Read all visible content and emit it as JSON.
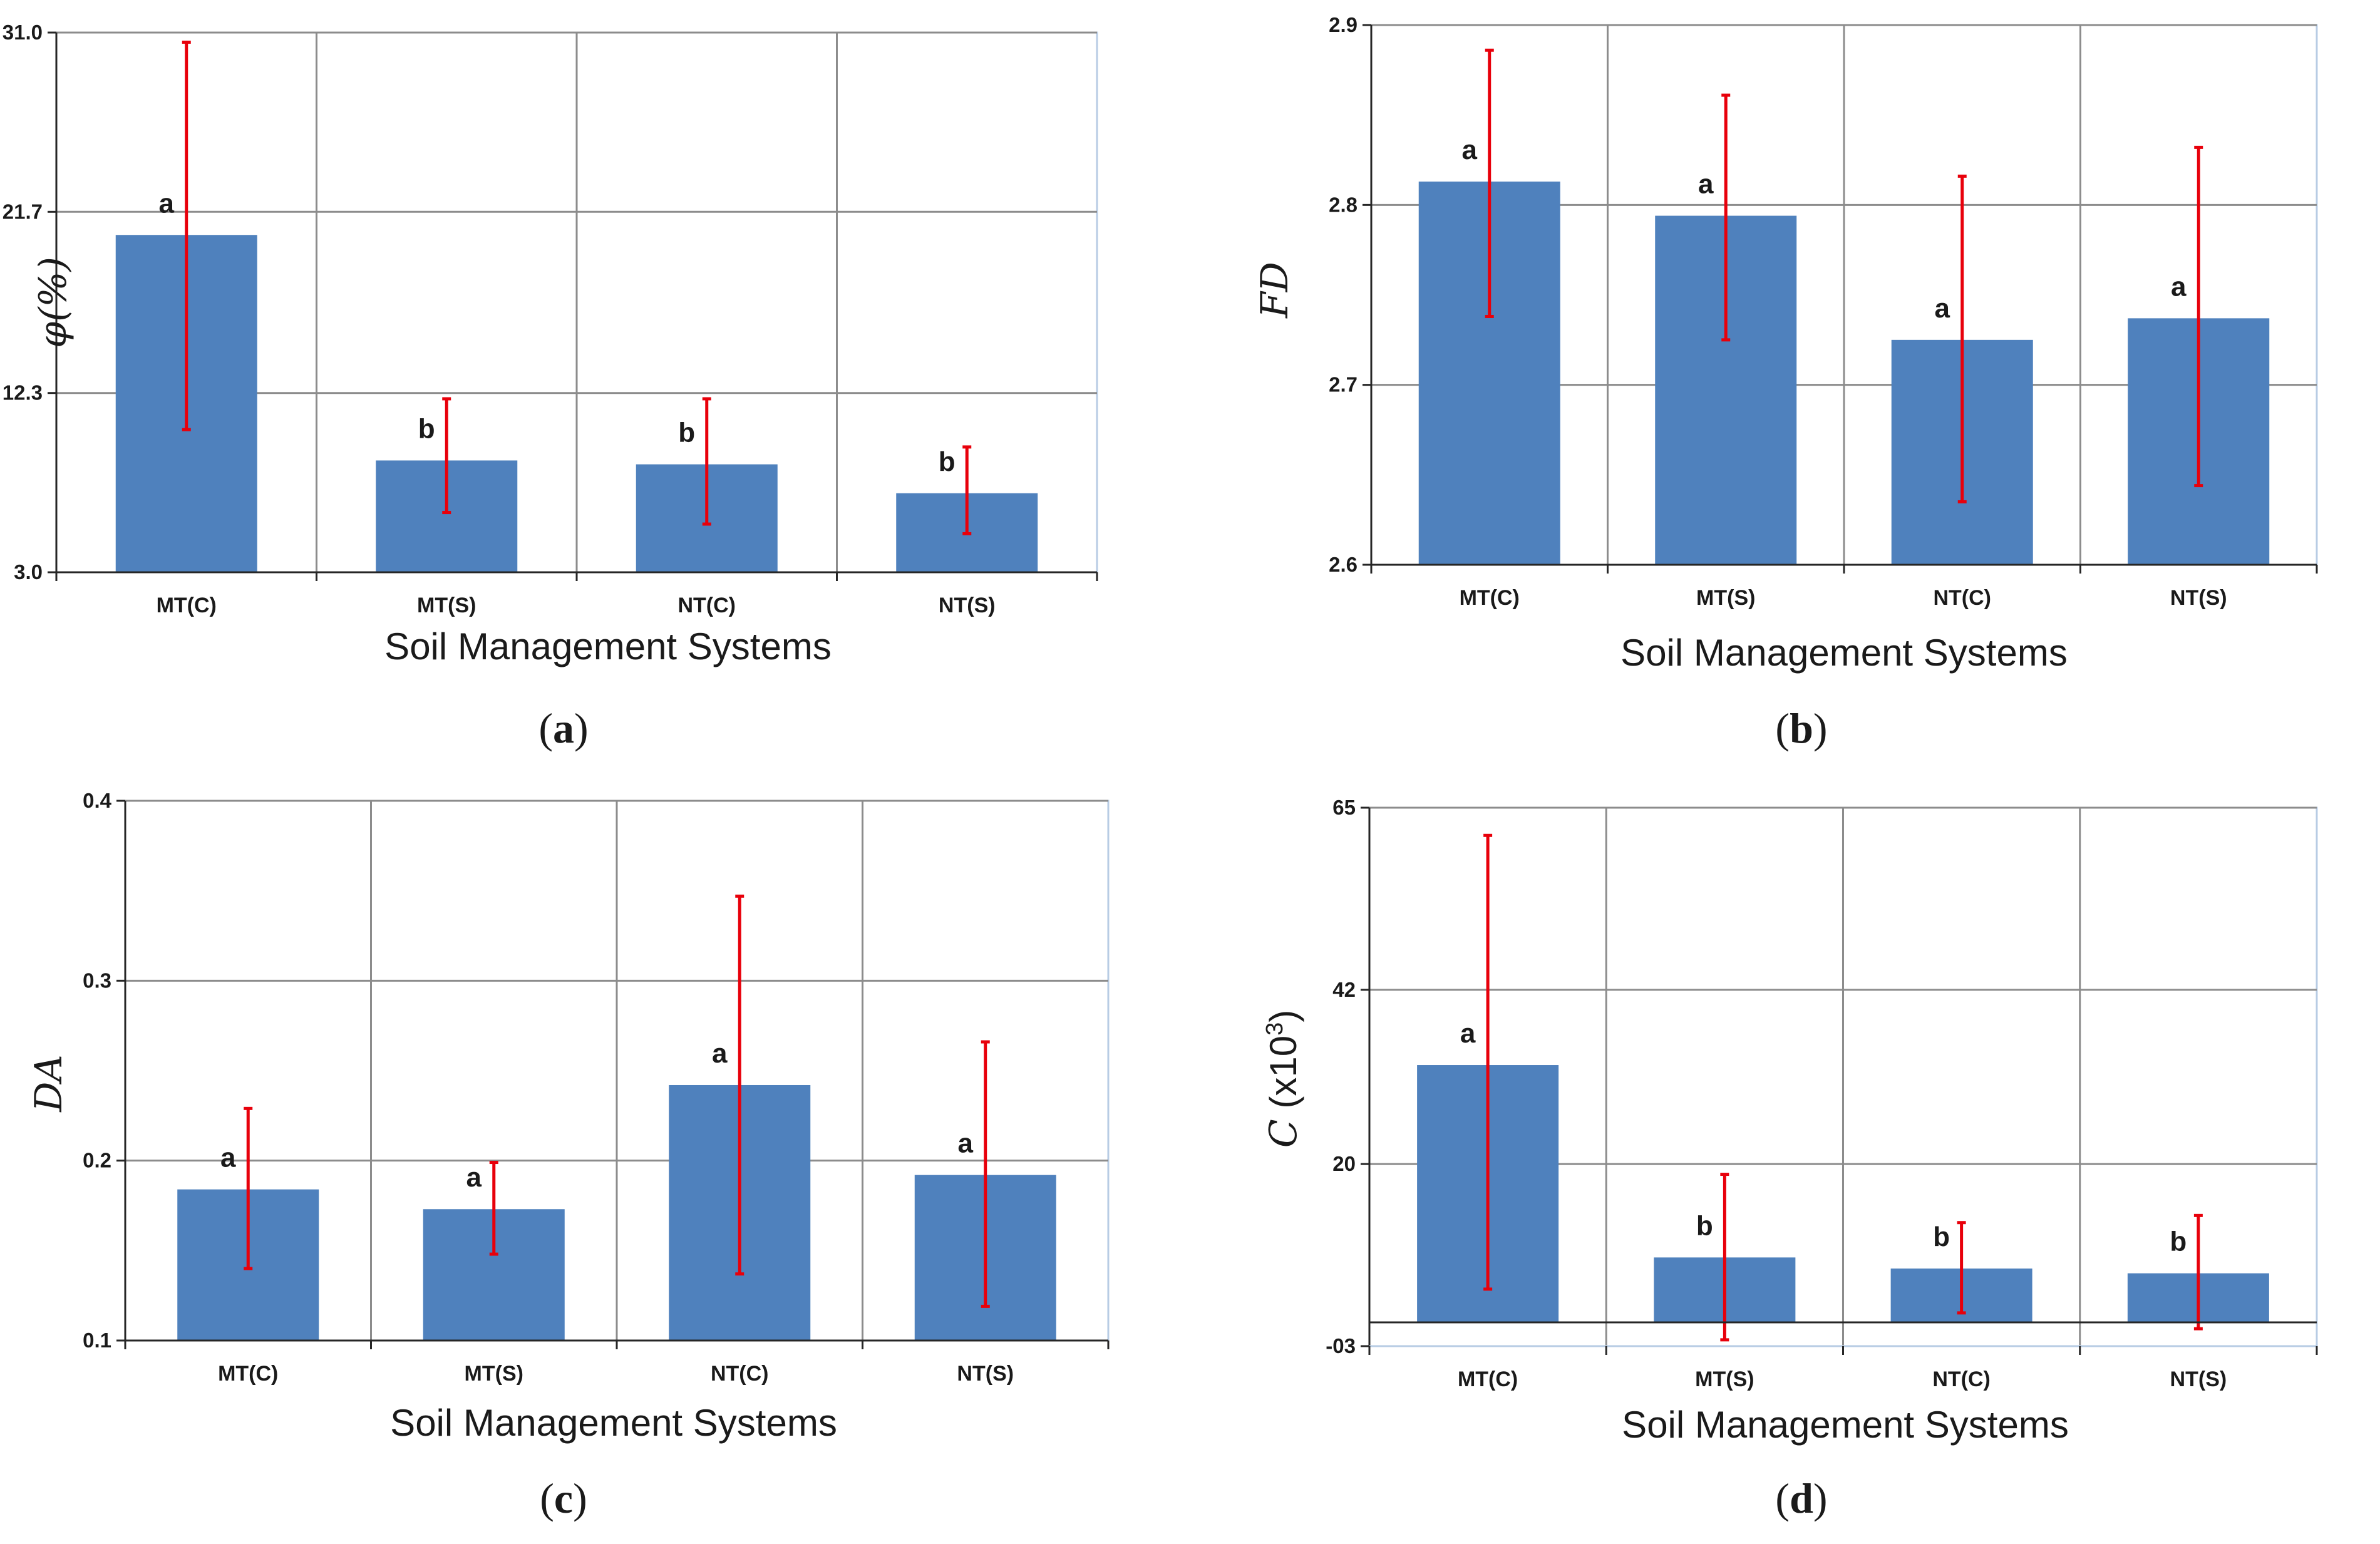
{
  "colors": {
    "bar": "#4f81bd",
    "error": "#e8000b",
    "grid": "#8c8c8c",
    "border": "#b8cce4",
    "axis": "#262626"
  },
  "chart_data": [
    {
      "id": "a",
      "type": "bar",
      "caption": "a",
      "title": "",
      "xlabel": "Soil Management Systems",
      "ylabel": "φ(%)",
      "ylim": [
        3.0,
        31.0
      ],
      "yticks": [
        "3.0",
        "12.3",
        "21.7",
        "31.0"
      ],
      "categories": [
        "MT(C)",
        "MT(S)",
        "NT(C)",
        "NT(S)"
      ],
      "values": [
        20.5,
        8.8,
        8.6,
        7.1
      ],
      "error_high": [
        30.5,
        12.0,
        12.0,
        9.5
      ],
      "error_low": [
        10.4,
        6.1,
        5.5,
        5.0
      ],
      "letters": [
        "a",
        "b",
        "b",
        "b"
      ]
    },
    {
      "id": "b",
      "type": "bar",
      "caption": "b",
      "title": "",
      "xlabel": "Soil Management Systems",
      "ylabel": "FD",
      "ylim": [
        2.6,
        2.9
      ],
      "yticks": [
        "2.6",
        "2.7",
        "2.8",
        "2.9"
      ],
      "categories": [
        "MT(C)",
        "MT(S)",
        "NT(C)",
        "NT(S)"
      ],
      "values": [
        2.813,
        2.794,
        2.725,
        2.737
      ],
      "error_high": [
        2.886,
        2.861,
        2.816,
        2.832
      ],
      "error_low": [
        2.738,
        2.725,
        2.635,
        2.644
      ],
      "letters": [
        "a",
        "a",
        "a",
        "a"
      ]
    },
    {
      "id": "c",
      "type": "bar",
      "caption": "c",
      "title": "",
      "xlabel": "Soil Management Systems",
      "ylabel": "DA",
      "ylim": [
        0.1,
        0.4
      ],
      "yticks": [
        "0.1",
        "0.2",
        "0.3",
        "0.4"
      ],
      "categories": [
        "MT(C)",
        "MT(S)",
        "NT(C)",
        "NT(S)"
      ],
      "values": [
        0.184,
        0.173,
        0.242,
        0.192
      ],
      "error_high": [
        0.229,
        0.199,
        0.347,
        0.266
      ],
      "error_low": [
        0.14,
        0.148,
        0.137,
        0.119
      ],
      "letters": [
        "a",
        "a",
        "a",
        "a"
      ]
    },
    {
      "id": "d",
      "type": "bar",
      "caption": "d",
      "title": "",
      "xlabel": "Soil Management Systems",
      "ylabel": "C (x10³)",
      "ylabel_main": "C",
      "ylabel_unit": " (x10",
      "ylabel_exp": "3",
      "ylabel_close": ")",
      "ylim": [
        -3,
        65
      ],
      "yticks": [
        "-03",
        "20",
        "42",
        "65"
      ],
      "ytick_values": [
        -3,
        20,
        42,
        65
      ],
      "categories": [
        "MT(C)",
        "MT(S)",
        "NT(C)",
        "NT(S)"
      ],
      "values": [
        32.5,
        8.2,
        6.8,
        6.2
      ],
      "error_high": [
        61.5,
        18.7,
        12.6,
        13.5
      ],
      "error_low": [
        4.2,
        -2.2,
        1.2,
        -0.8
      ],
      "letters": [
        "a",
        "b",
        "b",
        "b"
      ]
    }
  ]
}
